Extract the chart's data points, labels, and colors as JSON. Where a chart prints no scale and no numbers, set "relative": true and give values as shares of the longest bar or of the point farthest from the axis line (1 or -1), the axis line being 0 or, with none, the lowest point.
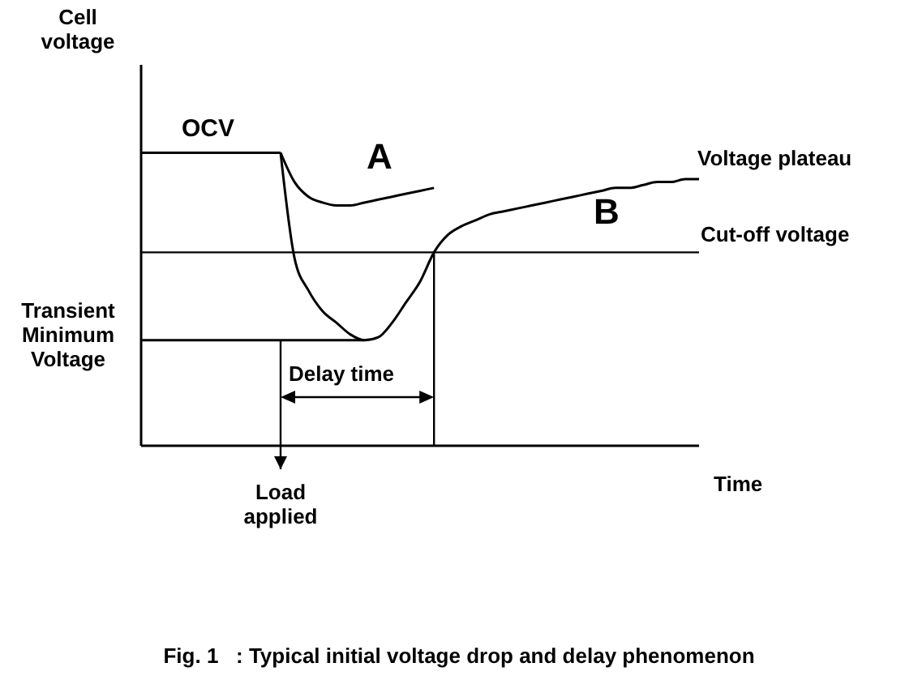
{
  "chart_data": {
    "type": "line",
    "relative": true,
    "title": "Fig. 1   : Typical initial voltage drop and delay phenomenon",
    "ylabel": "Cell voltage",
    "xlabel": "Time",
    "categories": [
      null,
      null,
      null,
      null,
      null,
      null,
      null,
      null,
      null,
      null,
      null,
      null,
      null,
      null,
      null,
      null,
      null,
      null,
      null,
      null,
      null,
      null,
      null,
      null,
      null,
      null,
      null,
      null,
      null,
      null,
      null,
      null,
      null,
      null,
      null,
      null,
      null,
      null,
      null,
      null,
      null
    ],
    "series": [
      {
        "name": "OCV",
        "color": "#000000",
        "values": [
          1,
          1,
          1,
          1,
          1,
          1,
          1,
          1,
          1,
          1,
          1,
          null,
          null,
          null,
          null,
          null,
          null,
          null,
          null,
          null,
          null,
          null,
          null,
          null,
          null,
          null,
          null,
          null,
          null,
          null,
          null,
          null,
          null,
          null,
          null,
          null,
          null,
          null,
          null,
          null,
          null
        ]
      },
      {
        "name": "A",
        "color": "#000000",
        "values": [
          null,
          null,
          null,
          null,
          null,
          null,
          null,
          null,
          null,
          null,
          1,
          0.9,
          0.85,
          0.83,
          0.82,
          0.82,
          0.83,
          0.84,
          0.85,
          0.86,
          0.87,
          0.88,
          null,
          null,
          null,
          null,
          null,
          null,
          null,
          null,
          null,
          null,
          null,
          null,
          null,
          null,
          null,
          null,
          null,
          null,
          null
        ]
      },
      {
        "name": "B",
        "color": "#000000",
        "values": [
          null,
          null,
          null,
          null,
          null,
          null,
          null,
          null,
          null,
          null,
          1,
          0.64,
          0.53,
          0.46,
          0.42,
          0.38,
          0.36,
          0.37,
          0.42,
          0.49,
          0.56,
          0.66,
          0.72,
          0.75,
          0.77,
          0.79,
          0.8,
          0.81,
          0.82,
          0.83,
          0.84,
          0.85,
          0.86,
          0.87,
          0.88,
          0.88,
          0.89,
          0.9,
          0.9,
          0.91,
          0.91
        ]
      },
      {
        "name": "Transient Minimum Voltage",
        "color": "#000000",
        "values": [
          0.36,
          0.36,
          0.36,
          0.36,
          0.36,
          0.36,
          0.36,
          0.36,
          0.36,
          0.36,
          0.36,
          0.36,
          0.36,
          0.36,
          0.36,
          0.36,
          0.36,
          null,
          null,
          null,
          null,
          null,
          null,
          null,
          null,
          null,
          null,
          null,
          null,
          null,
          null,
          null,
          null,
          null,
          null,
          null,
          null,
          null,
          null,
          null,
          null
        ]
      }
    ],
    "ref_lines": [
      {
        "axis": "y",
        "value": 0.66,
        "label": "Cut-off voltage"
      }
    ],
    "annotations": [
      "Voltage plateau",
      "Delay time",
      "Load applied"
    ]
  }
}
